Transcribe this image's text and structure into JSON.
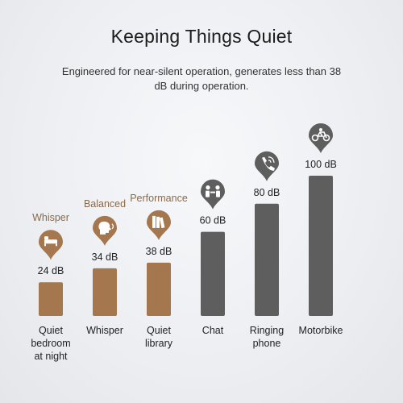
{
  "chart_data": {
    "type": "bar",
    "title": "Keeping Things Quiet",
    "subtitle": "Engineered for near-silent operation, generates less than 38 dB during operation.",
    "unit": "dB",
    "categories": [
      [
        "Quiet",
        "bedroom",
        "at night"
      ],
      [
        "Whisper"
      ],
      [
        "Quiet",
        "library"
      ],
      [
        "Chat"
      ],
      [
        "Ringing",
        "phone"
      ],
      [
        "Motorbike"
      ]
    ],
    "values": [
      24,
      34,
      38,
      60,
      80,
      100
    ],
    "value_labels": [
      "24 dB",
      "34 dB",
      "38 dB",
      "60 dB",
      "80 dB",
      "100 dB"
    ],
    "mode_labels": [
      "Whisper",
      "Balanced",
      "Performance",
      "",
      "",
      ""
    ],
    "icons": [
      "bed-icon",
      "whisper-head-icon",
      "books-icon",
      "chat-people-icon",
      "phone-icon",
      "motorbike-icon"
    ],
    "bar_colors": [
      "#a4774f",
      "#a4774f",
      "#a4774f",
      "#5e5e5e",
      "#5e5e5e",
      "#5e5e5e"
    ],
    "marker_colors": [
      "#a4774f",
      "#a4774f",
      "#a4774f",
      "#5e5e5e",
      "#5e5e5e",
      "#5e5e5e"
    ],
    "ylim": [
      0,
      100
    ],
    "grid": false
  }
}
